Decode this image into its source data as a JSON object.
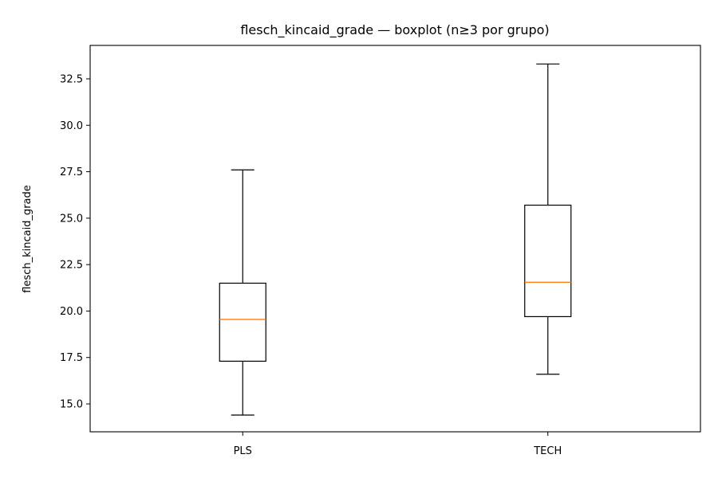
{
  "chart_data": {
    "type": "boxplot",
    "title": "flesch_kincaid_grade — boxplot (n≥3 por grupo)",
    "xlabel": "",
    "ylabel": "flesch_kincaid_grade",
    "ylim": [
      13.5,
      34.3
    ],
    "yticks": [
      15.0,
      17.5,
      20.0,
      22.5,
      25.0,
      27.5,
      30.0,
      32.5
    ],
    "ytick_labels": [
      "15.0",
      "17.5",
      "20.0",
      "22.5",
      "25.0",
      "27.5",
      "30.0",
      "32.5"
    ],
    "categories": [
      "PLS",
      "TECH"
    ],
    "grid": false,
    "series": [
      {
        "category": "PLS",
        "whisker_low": 14.4,
        "q1": 17.3,
        "median": 19.55,
        "q3": 21.5,
        "whisker_high": 27.6
      },
      {
        "category": "TECH",
        "whisker_low": 16.6,
        "q1": 19.7,
        "median": 21.55,
        "q3": 25.7,
        "whisker_high": 33.3
      }
    ],
    "colors": {
      "box": "#000000",
      "median": "#ff7f0e"
    }
  }
}
